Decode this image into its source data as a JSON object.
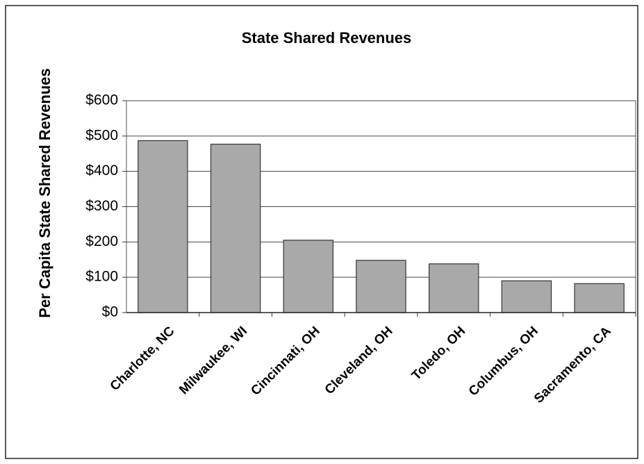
{
  "chart_data": {
    "type": "bar",
    "title": "State Shared Revenues",
    "ylabel": "Per Capita State Shared Revenues",
    "categories": [
      "Charlotte, NC",
      "Milwaukee, WI",
      "Cincinnati, OH",
      "Cleveland, OH",
      "Toledo, OH",
      "Columbus, OH",
      "Sacramento, CA"
    ],
    "values": [
      487,
      477,
      205,
      148,
      138,
      90,
      82
    ],
    "color": "#a9a9a9",
    "ylim": [
      0,
      600
    ],
    "yticks": [
      {
        "value": 0,
        "label": "$0"
      },
      {
        "value": 100,
        "label": "$100"
      },
      {
        "value": 200,
        "label": "$200"
      },
      {
        "value": 300,
        "label": "$300"
      },
      {
        "value": 400,
        "label": "$400"
      },
      {
        "value": 500,
        "label": "$500"
      },
      {
        "value": 600,
        "label": "$600"
      }
    ],
    "grid": true
  }
}
